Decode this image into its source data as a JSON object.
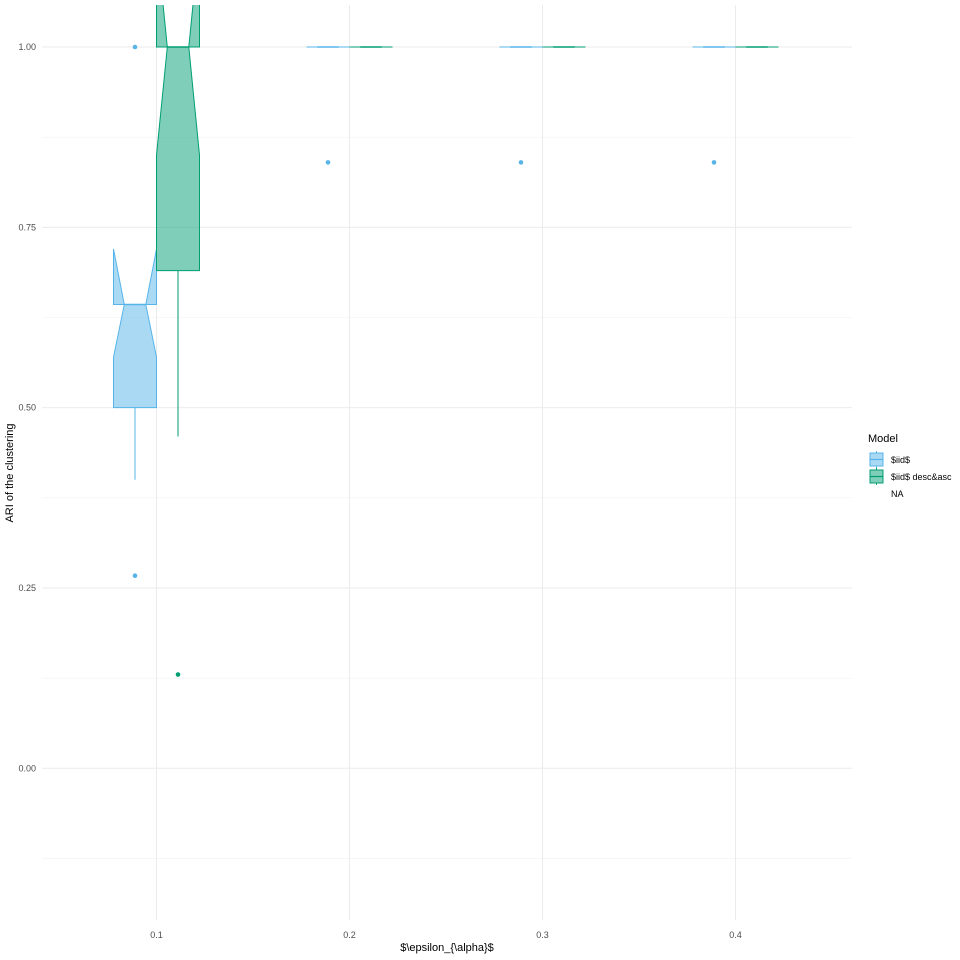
{
  "chart_data": {
    "type": "box",
    "title": "",
    "xlabel": "$\\epsilon_{\\alpha}$",
    "ylabel": "ARI of the clustering",
    "x_ticks": [
      "0.1",
      "0.2",
      "0.3",
      "0.4"
    ],
    "y_ticks": [
      "0.00",
      "0.25",
      "0.50",
      "0.75",
      "1.00"
    ],
    "ylim": [
      -0.25,
      1.06
    ],
    "grid": true,
    "notched": true,
    "legend": {
      "title": "Model",
      "position": "right",
      "entries": [
        "$iid$",
        "$iid$ desc&asc",
        "NA"
      ]
    },
    "colors": {
      "$iid$": "#56B4E9",
      "$iid$ desc&asc": "#009E73"
    },
    "groups": [
      {
        "x": "0.1",
        "series": "$iid$",
        "whisker_low": 0.4,
        "q1": 0.5,
        "median": 0.643,
        "q3": 0.643,
        "whisker_high": 0.643,
        "notch_low": 0.57,
        "notch_high": 0.72,
        "outliers": [
          1.0,
          0.267
        ]
      },
      {
        "x": "0.1",
        "series": "$iid$ desc&asc",
        "whisker_low": 0.46,
        "q1": 0.69,
        "median": 1.0,
        "q3": 1.0,
        "whisker_high": 1.0,
        "notch_low": 0.85,
        "notch_high": 1.15,
        "outliers": [
          0.13
        ]
      },
      {
        "x": "0.2",
        "series": "$iid$",
        "whisker_low": 1.0,
        "q1": 1.0,
        "median": 1.0,
        "q3": 1.0,
        "whisker_high": 1.0,
        "notch_low": 1.0,
        "notch_high": 1.0,
        "outliers": [
          0.84
        ]
      },
      {
        "x": "0.2",
        "series": "$iid$ desc&asc",
        "whisker_low": 1.0,
        "q1": 1.0,
        "median": 1.0,
        "q3": 1.0,
        "whisker_high": 1.0,
        "notch_low": 1.0,
        "notch_high": 1.0,
        "outliers": []
      },
      {
        "x": "0.3",
        "series": "$iid$",
        "whisker_low": 1.0,
        "q1": 1.0,
        "median": 1.0,
        "q3": 1.0,
        "whisker_high": 1.0,
        "notch_low": 1.0,
        "notch_high": 1.0,
        "outliers": [
          0.84
        ]
      },
      {
        "x": "0.3",
        "series": "$iid$ desc&asc",
        "whisker_low": 1.0,
        "q1": 1.0,
        "median": 1.0,
        "q3": 1.0,
        "whisker_high": 1.0,
        "notch_low": 1.0,
        "notch_high": 1.0,
        "outliers": []
      },
      {
        "x": "0.4",
        "series": "$iid$",
        "whisker_low": 1.0,
        "q1": 1.0,
        "median": 1.0,
        "q3": 1.0,
        "whisker_high": 1.0,
        "notch_low": 1.0,
        "notch_high": 1.0,
        "outliers": [
          0.84
        ]
      },
      {
        "x": "0.4",
        "series": "$iid$ desc&asc",
        "whisker_low": 1.0,
        "q1": 1.0,
        "median": 1.0,
        "q3": 1.0,
        "whisker_high": 1.0,
        "notch_low": 1.0,
        "notch_high": 1.0,
        "outliers": []
      }
    ]
  }
}
